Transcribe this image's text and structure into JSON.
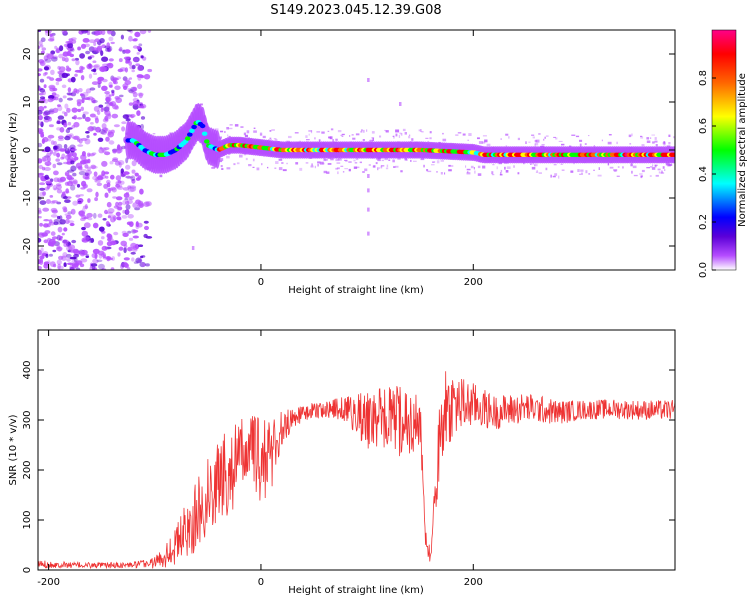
{
  "figure_title": "S149.2023.045.12.39.G08",
  "chart_data": [
    {
      "type": "heatmap",
      "title": "S149.2023.045.12.39.G08",
      "xlabel": "Height of straight line (km)",
      "ylabel": "Frequency (Hz)",
      "xlim": [
        -210,
        390
      ],
      "ylim": [
        -25,
        25
      ],
      "x_ticks": [
        -200,
        0,
        200
      ],
      "y_ticks": [
        -20,
        -10,
        0,
        10,
        20
      ],
      "grid": false,
      "ridge": {
        "x": [
          -120,
          -110,
          -100,
          -90,
          -80,
          -70,
          -60,
          -55,
          -50,
          -40,
          -30,
          -20,
          0,
          20,
          50,
          100,
          150,
          200,
          210,
          250,
          300,
          350,
          390
        ],
        "y": [
          2,
          0,
          -1,
          -1,
          0,
          2,
          6,
          5,
          1,
          0,
          1,
          1,
          0.5,
          0,
          0,
          0,
          0,
          -0.5,
          -1,
          -1,
          -1,
          -1,
          -1
        ]
      },
      "colorbar": {
        "label": "Normalized spectral amplitude",
        "range": [
          0,
          1
        ],
        "ticks": [
          "0.0",
          "0.2",
          "0.4",
          "0.6",
          "0.8"
        ],
        "colors": [
          "#ffffff",
          "#b54cff",
          "#5a00d8",
          "#0000ff",
          "#00ffff",
          "#00ff00",
          "#ffff00",
          "#ff6600",
          "#ff0000",
          "#ff0088"
        ]
      }
    },
    {
      "type": "line",
      "xlabel": "Height of straight line (km)",
      "ylabel": "SNR (10 * v/v)",
      "xlim": [
        -210,
        390
      ],
      "ylim": [
        0,
        480
      ],
      "x_ticks": [
        -200,
        0,
        200
      ],
      "y_ticks": [
        0,
        100,
        200,
        300,
        400
      ],
      "grid": false,
      "series": [
        {
          "color": "#ee3333",
          "x": [
            -210,
            -180,
            -150,
            -120,
            -100,
            -90,
            -80,
            -70,
            -60,
            -50,
            -40,
            -30,
            -20,
            -10,
            0,
            10,
            20,
            30,
            50,
            80,
            100,
            120,
            140,
            150,
            155,
            160,
            170,
            180,
            200,
            220,
            250,
            280,
            300,
            330,
            360,
            390
          ],
          "y": [
            12,
            10,
            9,
            10,
            15,
            30,
            50,
            80,
            110,
            150,
            180,
            200,
            220,
            250,
            210,
            240,
            280,
            305,
            320,
            322,
            300,
            300,
            295,
            290,
            60,
            25,
            310,
            330,
            330,
            315,
            325,
            315,
            320,
            322,
            320,
            320
          ],
          "amplitude": [
            8,
            6,
            6,
            6,
            12,
            25,
            40,
            60,
            70,
            80,
            90,
            90,
            80,
            70,
            90,
            80,
            40,
            20,
            15,
            25,
            60,
            70,
            70,
            60,
            20,
            15,
            90,
            70,
            45,
            35,
            30,
            25,
            20,
            20,
            20,
            20
          ]
        }
      ]
    }
  ]
}
